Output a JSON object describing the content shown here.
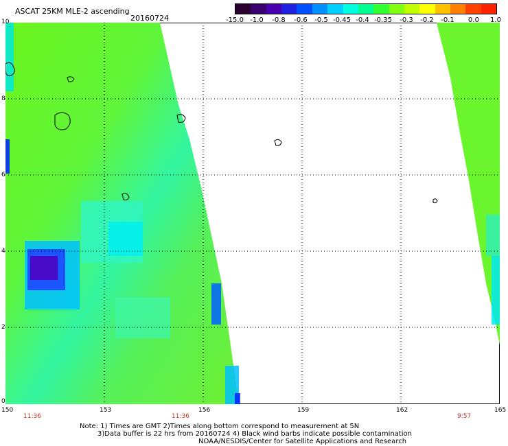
{
  "header": {
    "title": "ASCAT 25KM MLE-2 ascending",
    "date": "20160724"
  },
  "colorbar": {
    "labels": [
      "-15.0",
      "-1.0",
      "-0.8",
      "-0.6",
      "-0.5",
      "-0.45",
      "-0.4",
      "-0.35",
      "-0.3",
      "-0.2",
      "-0.1",
      "0.0",
      "1.0"
    ],
    "colors": [
      "#2a0030",
      "#3a0070",
      "#4a00b0",
      "#2020e0",
      "#0050ff",
      "#0090ff",
      "#00d0ff",
      "#00ffe0",
      "#00ff90",
      "#30ff30",
      "#80ff10",
      "#c0ff00",
      "#ffff00",
      "#ffc000",
      "#ff8000",
      "#ff4000",
      "#ff2000"
    ]
  },
  "map": {
    "lon_range": [
      150,
      165
    ],
    "lat_range": [
      0,
      10
    ],
    "x_ticks": [
      "150",
      "153",
      "156",
      "159",
      "162",
      "165"
    ],
    "y_ticks": [
      "10",
      "8",
      "6",
      "4",
      "2",
      "0"
    ],
    "pass_times": [
      "11:36",
      "11:36",
      "9:57"
    ]
  },
  "notes": {
    "line1": "Note: 1) Times are GMT 2)Times along bottom correspond to measurement at 5N",
    "line2": "3)Data buffer is 22 hrs from 20160724 4) Black wind barbs indicate possible contamination",
    "line3": "NOAA/NESDIS/Center for Satellite Applications and Research"
  }
}
